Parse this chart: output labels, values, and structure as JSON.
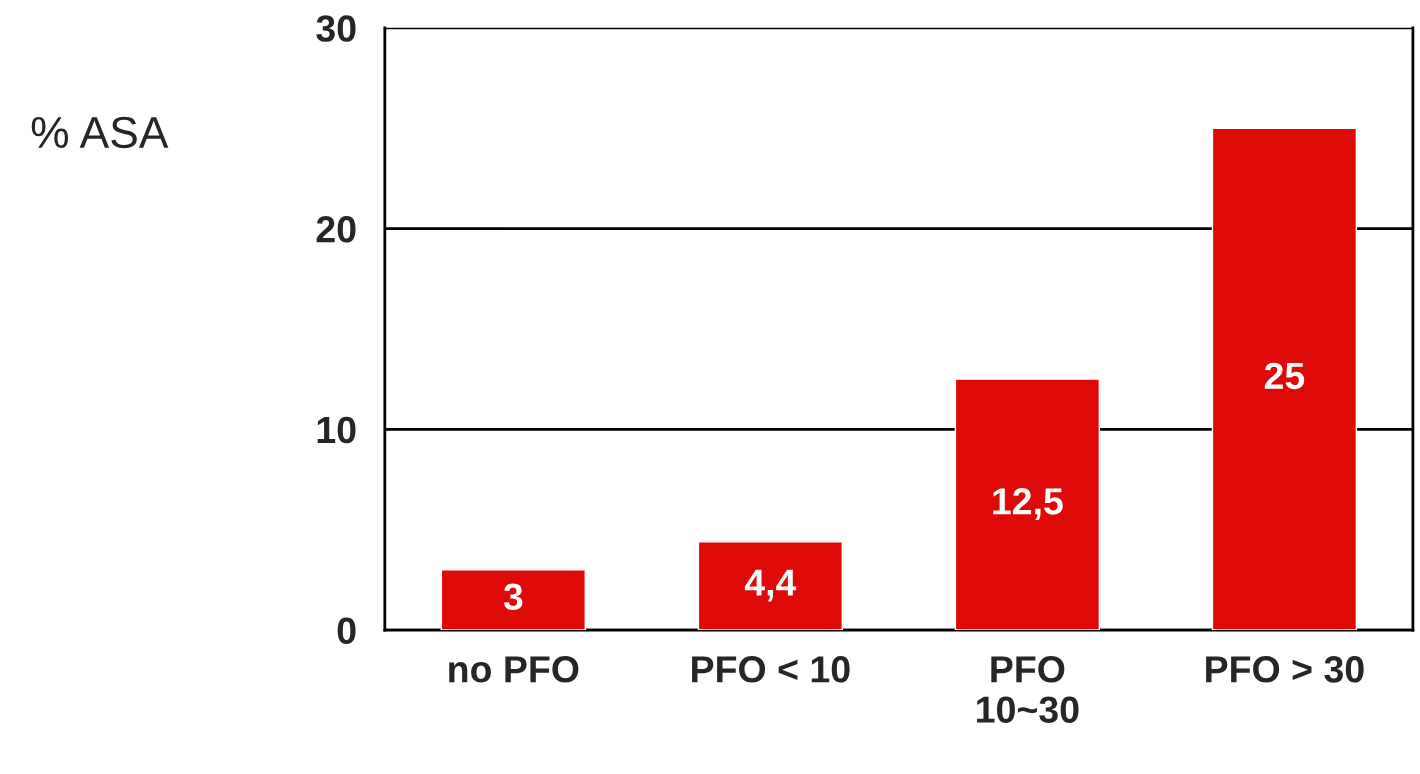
{
  "chart_data": {
    "type": "bar",
    "ylabel": "% ASA",
    "categories": [
      "no PFO",
      "PFO < 10",
      "PFO\n10~30",
      "PFO > 30"
    ],
    "values": [
      3,
      4.4,
      12.5,
      25
    ],
    "color": "#dd0a07",
    "value_labels": [
      "3",
      "4,4",
      "12,5",
      "25"
    ],
    "ylim": [
      0,
      30
    ],
    "yticks": [
      0,
      10,
      20,
      30
    ],
    "grid": "y",
    "legend": false
  }
}
